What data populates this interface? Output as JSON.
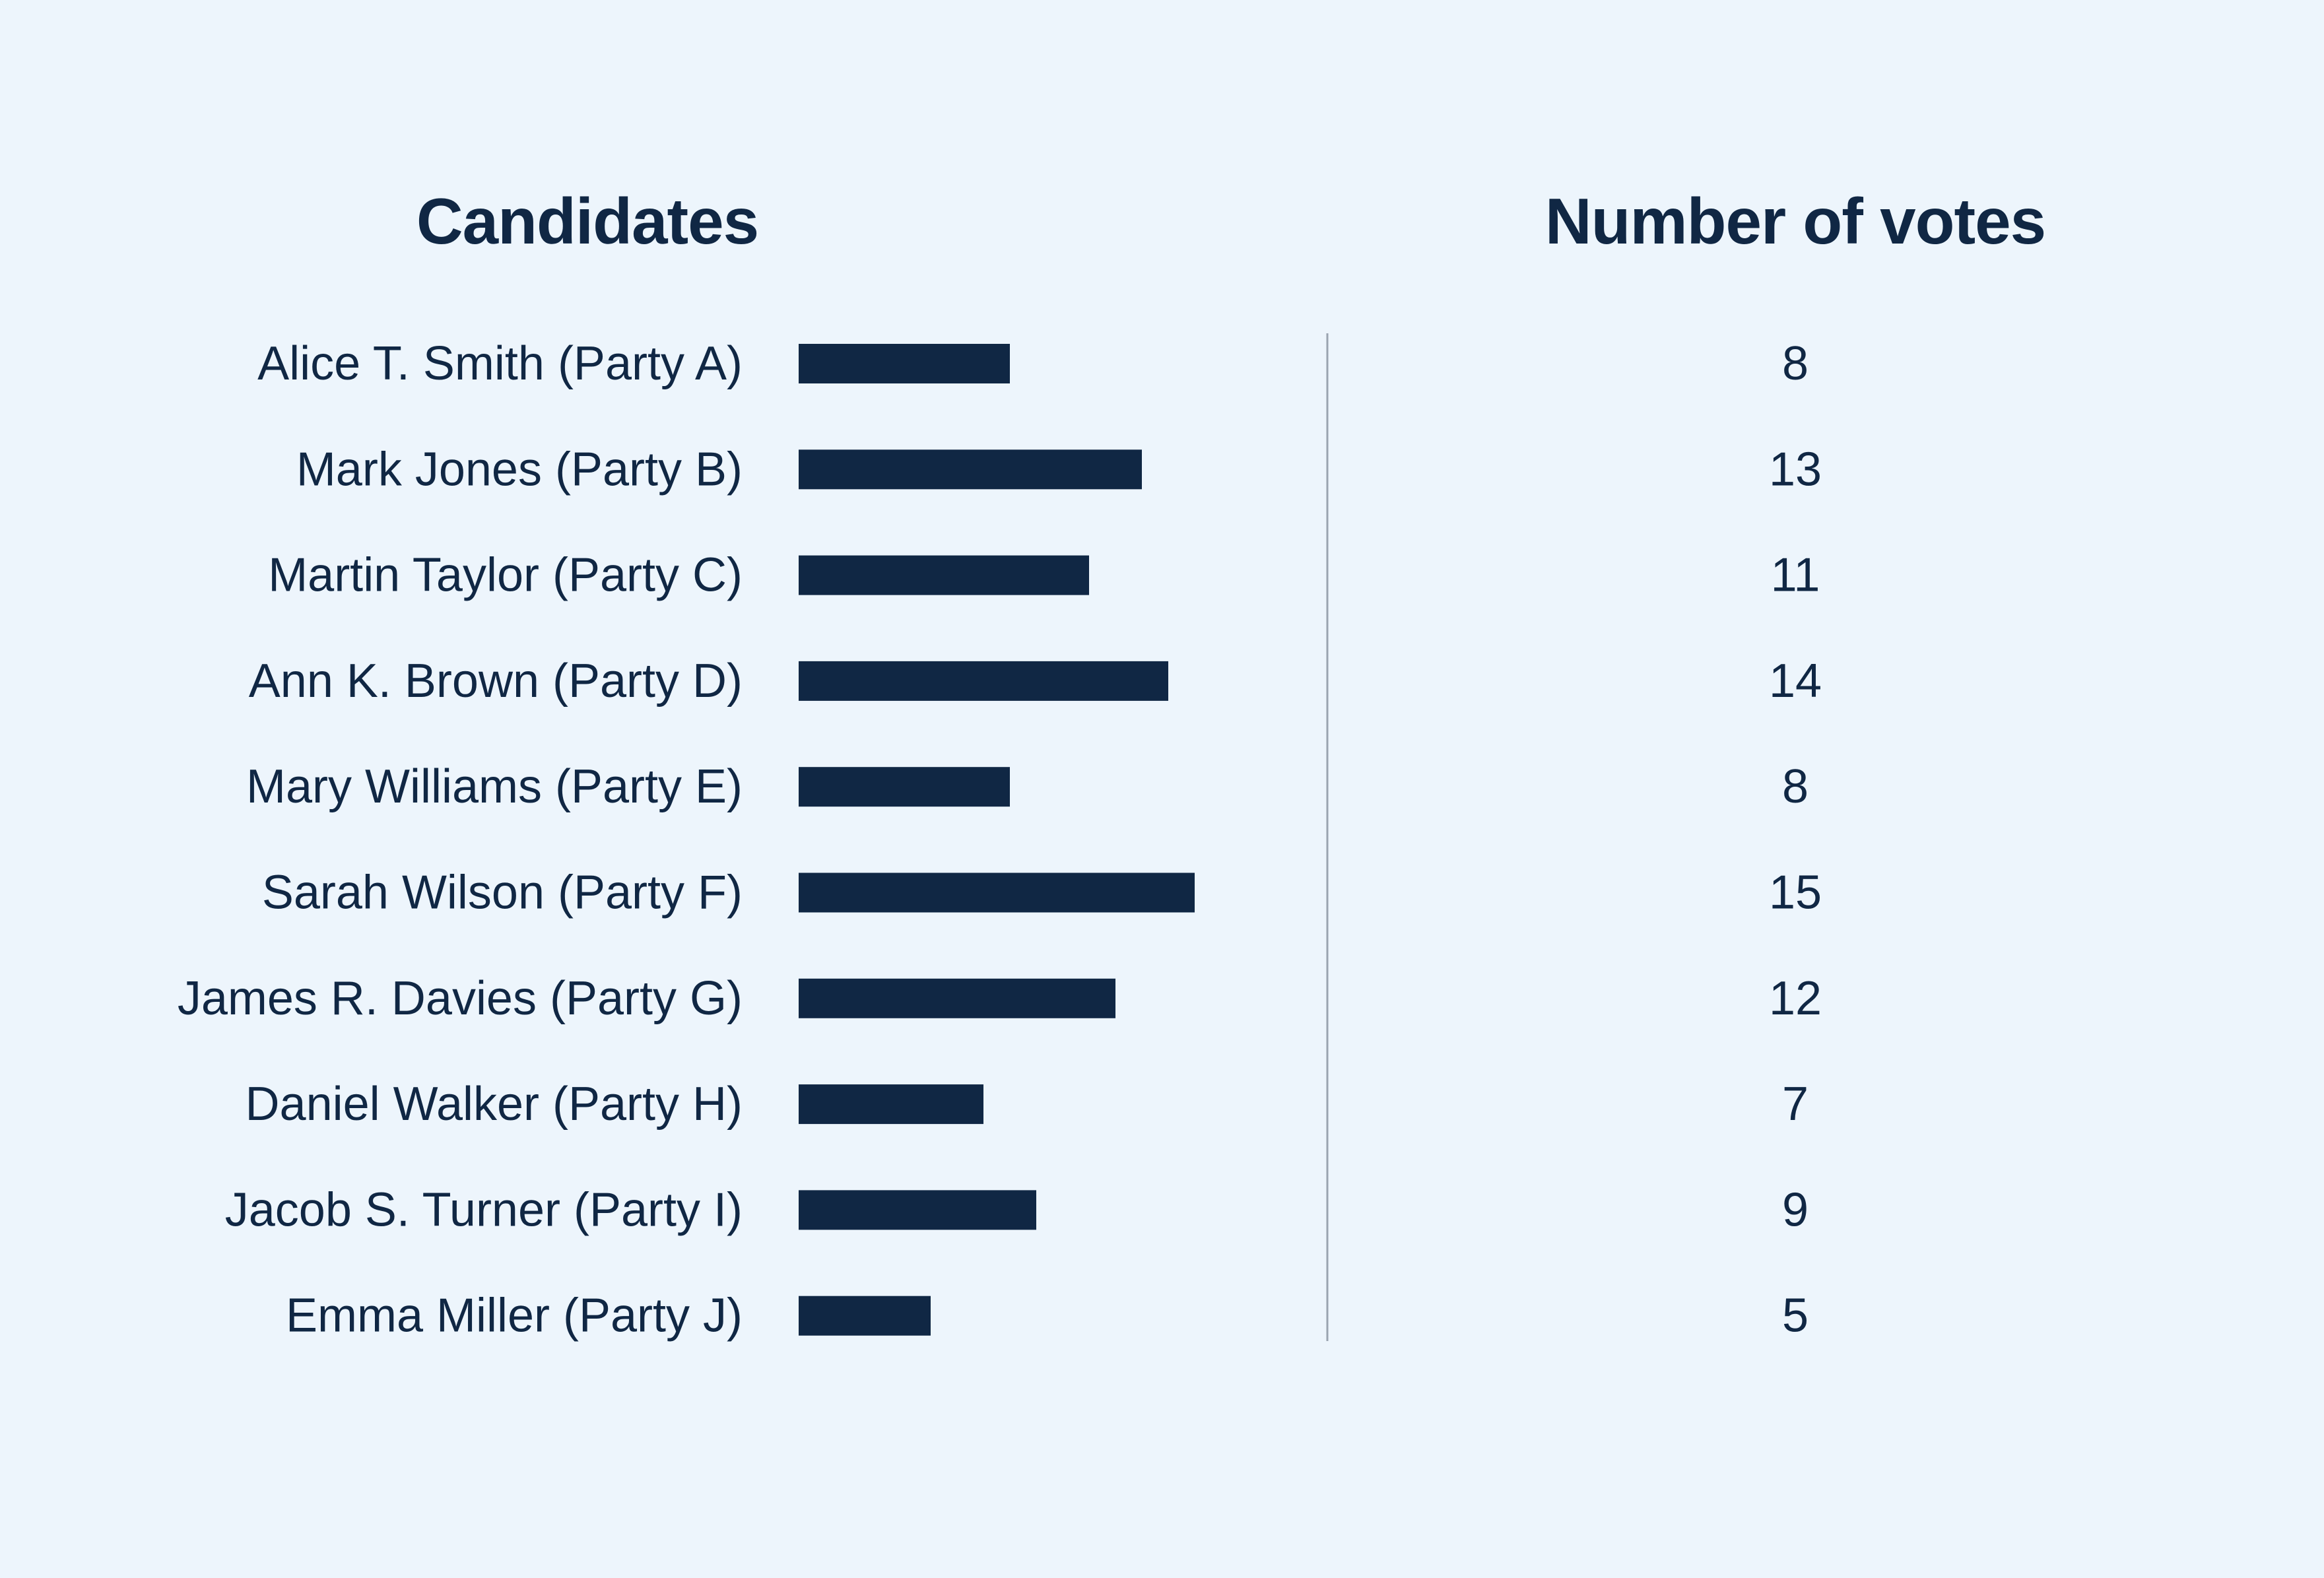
{
  "headings": {
    "candidates": "Candidates",
    "votes": "Number of votes"
  },
  "colors": {
    "background": "#edf5fc",
    "bar": "#102744",
    "text": "#102744",
    "divider": "#9aa4b0"
  },
  "chart_data": {
    "type": "bar",
    "orientation": "horizontal",
    "categories": [
      "Alice T. Smith (Party A)",
      "Mark Jones (Party B)",
      "Martin Taylor (Party C)",
      "Ann K. Brown (Party D)",
      "Mary Williams (Party E)",
      "Sarah Wilson (Party F)",
      "James R. Davies (Party G)",
      "Daniel Walker (Party H)",
      "Jacob S. Turner (Party I)",
      "Emma Miller (Party J)"
    ],
    "values": [
      8,
      13,
      11,
      14,
      8,
      15,
      12,
      7,
      9,
      5
    ],
    "grid": false,
    "legend": "none"
  }
}
